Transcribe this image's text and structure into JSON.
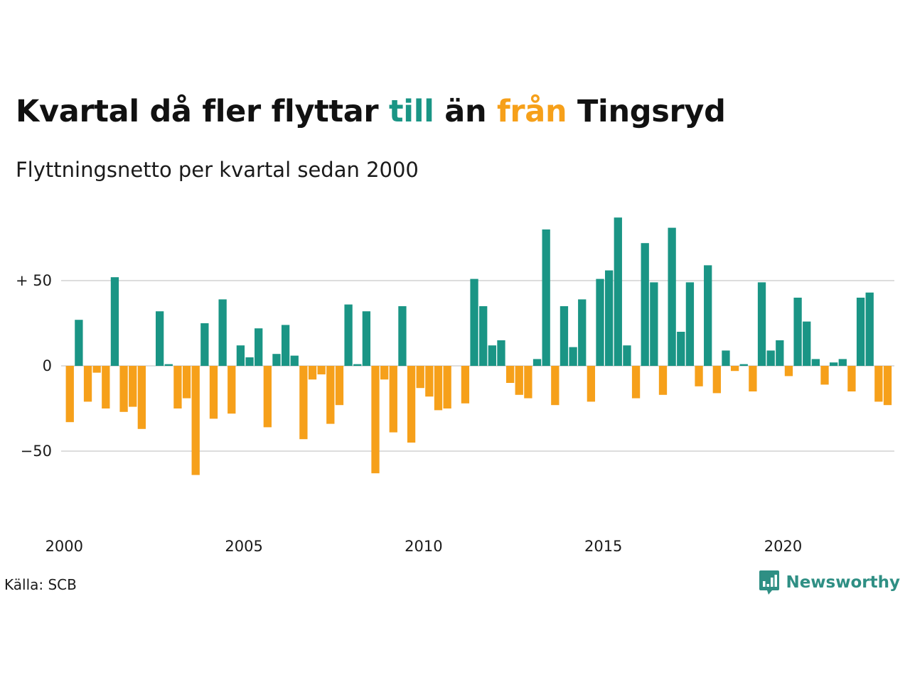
{
  "title": {
    "part1": "Kvartal då fler flyttar ",
    "part_till": "till",
    "part2": " än ",
    "part_fran": "från",
    "part3": " Tingsryd"
  },
  "subtitle": "Flyttningsnetto per kvartal sedan 2000",
  "source": "Källa: SCB",
  "brand": {
    "name": "Newsworthy",
    "icon": "newsworthy-logo-icon"
  },
  "colors": {
    "positive": "#1a9585",
    "negative": "#f6a01a",
    "grid": "#dddddd",
    "brand": "#2f8f84"
  },
  "chart_data": {
    "type": "bar",
    "title": "Kvartal då fler flyttar till än från Tingsryd",
    "subtitle": "Flyttningsnetto per kvartal sedan 2000",
    "xlabel": "",
    "ylabel": "",
    "x_start": "2000 Q1",
    "frequency": "quarterly",
    "xticks": [
      "2000",
      "2005",
      "2010",
      "2015",
      "2020"
    ],
    "yticks": [
      {
        "value": 50,
        "label": "+ 50"
      },
      {
        "value": 0,
        "label": "0"
      },
      {
        "value": -50,
        "label": "−50"
      }
    ],
    "ylim": [
      -90,
      90
    ],
    "grid": true,
    "legend": "none",
    "values": [
      -33,
      27,
      -21,
      -4,
      -25,
      52,
      -27,
      -24,
      -37,
      0,
      32,
      1,
      -25,
      -19,
      -64,
      25,
      -31,
      39,
      -28,
      12,
      5,
      22,
      -36,
      7,
      24,
      6,
      -43,
      -8,
      -5,
      -34,
      -23,
      36,
      1,
      32,
      -63,
      -8,
      -39,
      35,
      -45,
      -13,
      -18,
      -26,
      -25,
      0,
      -22,
      51,
      35,
      12,
      15,
      -10,
      -17,
      -19,
      4,
      80,
      -23,
      35,
      11,
      39,
      -21,
      51,
      56,
      87,
      12,
      -19,
      72,
      49,
      -17,
      81,
      20,
      49,
      -12,
      59,
      -16,
      9,
      -3,
      1,
      -15,
      49,
      9,
      15,
      -6,
      40,
      26,
      4,
      -11,
      2,
      4,
      -15,
      40,
      43,
      -21,
      -23
    ]
  }
}
